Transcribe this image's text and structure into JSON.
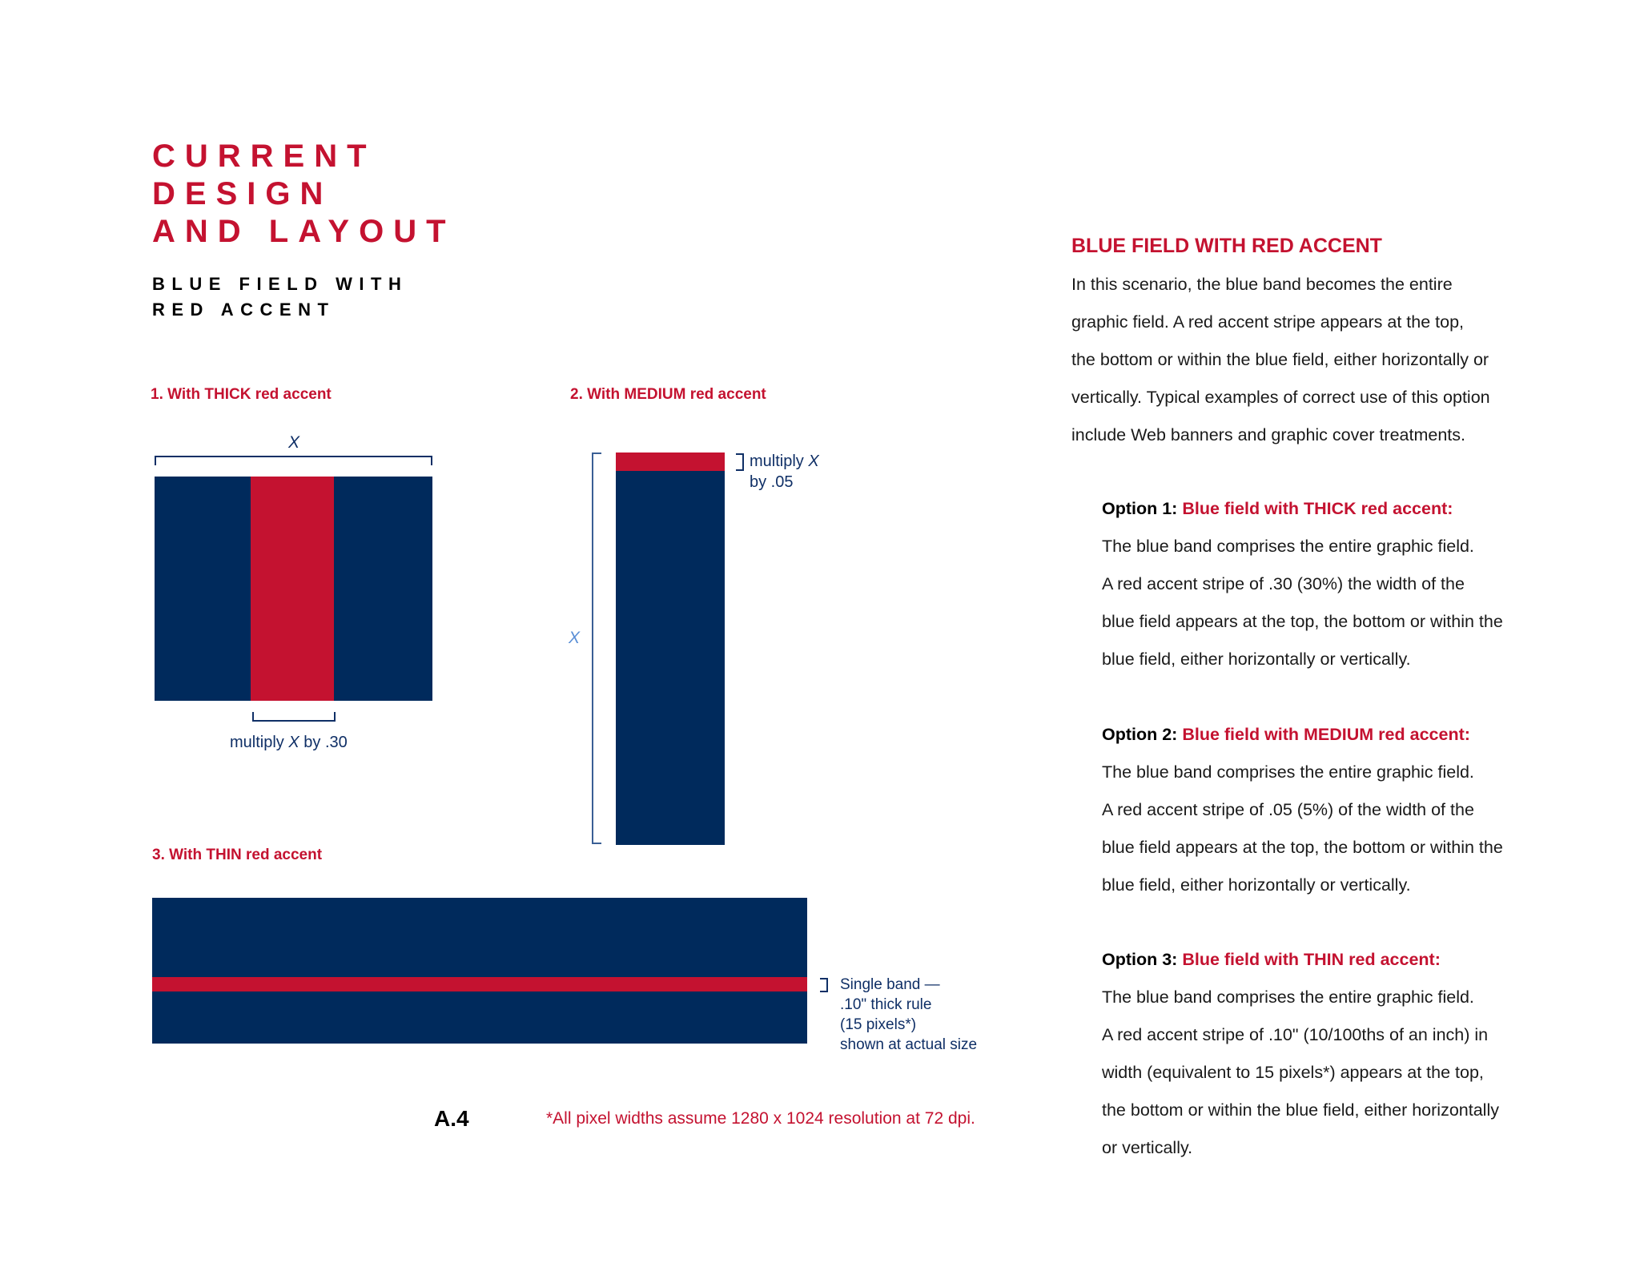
{
  "colors": {
    "blue": "#002a5c",
    "red": "#c41230"
  },
  "title": {
    "lines": [
      "CURRENT",
      "DESIGN",
      "AND LAYOUT"
    ],
    "subtitle_lines": [
      "BLUE FIELD WITH",
      "RED ACCENT"
    ]
  },
  "figures": {
    "thick": {
      "label": "1. With THICK red accent",
      "x_label": "X",
      "caption_pre": "multiply ",
      "caption_x": "X",
      "caption_post": " by .30",
      "accent_fraction": 0.3
    },
    "medium": {
      "label": "2. With MEDIUM red accent",
      "x_label": "X",
      "note_line1_pre": "multiply ",
      "note_line1_x": "X",
      "note_line2": "by .05",
      "accent_fraction": 0.05
    },
    "thin": {
      "label": "3. With THIN red accent",
      "note_lines": [
        "Single band —",
        ".10\" thick rule",
        "(15 pixels*)",
        "shown at actual size"
      ]
    }
  },
  "footer": {
    "page": "A.4",
    "footnote": "*All pixel widths assume 1280 x 1024 resolution at 72 dpi."
  },
  "right": {
    "heading": "BLUE FIELD WITH RED ACCENT",
    "intro": [
      "In this scenario, the blue band becomes the entire",
      "graphic field. A red accent stripe appears at the top,",
      "the bottom or within the blue field, either horizontally or",
      "vertically. Typical examples of correct use of this option",
      "include Web banners and graphic cover treatments."
    ],
    "options": [
      {
        "prefix": "Option 1: ",
        "title": "Blue field with THICK red accent:",
        "lines": [
          "The blue band comprises the entire graphic field.",
          "A red accent stripe of .30 (30%) the width of the",
          "blue field appears at the top, the bottom or within the",
          "blue field, either horizontally or vertically."
        ]
      },
      {
        "prefix": "Option 2: ",
        "title": "Blue field with MEDIUM red accent:",
        "lines": [
          "The blue band comprises the entire graphic field.",
          "A red accent stripe of .05 (5%) of the width of the",
          "blue field appears at the top, the bottom or within the",
          "blue field, either horizontally or vertically."
        ]
      },
      {
        "prefix": "Option 3: ",
        "title": "Blue field with THIN red accent:",
        "lines": [
          "The blue band comprises the entire graphic field.",
          "A red accent stripe of .10\" (10/100ths of an inch) in",
          "width (equivalent to 15 pixels*) appears at the top,",
          "the bottom or within the blue field, either horizontally",
          "or vertically."
        ]
      }
    ]
  }
}
